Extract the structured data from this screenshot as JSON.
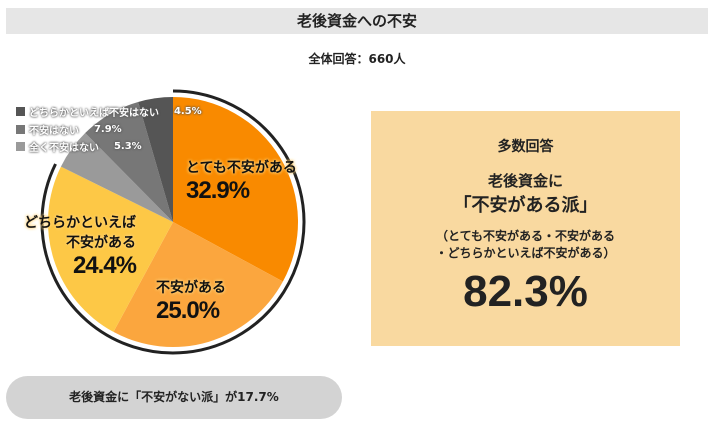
{
  "header": {
    "title": "老後資金への不安",
    "total": "全体回答：660人"
  },
  "chart_data": {
    "type": "pie",
    "title": "老後資金への不安",
    "slices": [
      {
        "label": "とても不安がある",
        "value": 32.9,
        "display": "32.9%",
        "color": "#f98a00"
      },
      {
        "label": "不安がある",
        "value": 25.0,
        "display": "25.0%",
        "color": "#fba63e"
      },
      {
        "label": "どちらかといえば不安がある",
        "value": 24.4,
        "display": "24.4%",
        "color": "#fdc846"
      },
      {
        "label": "全く不安はない",
        "value": 5.3,
        "display": "5.3%",
        "color": "#9a9a9a"
      },
      {
        "label": "不安はない",
        "value": 7.9,
        "display": "7.9%",
        "color": "#777777"
      },
      {
        "label": "どちらかといえば不安はない",
        "value": 4.5,
        "display": "4.5%",
        "color": "#555555"
      }
    ]
  },
  "labels": {
    "s2a": "どちらかといえば",
    "s2b": "不安がある"
  },
  "summary": {
    "heading": "多数回答",
    "line1": "老後資金に",
    "line2": "「不安がある派」",
    "note1": "（とても不安がある・不安がある",
    "note2": "・どちらかといえば不安がある）",
    "value": "82.3%"
  },
  "footer": "老後資金に「不安がない派」が17.7%"
}
